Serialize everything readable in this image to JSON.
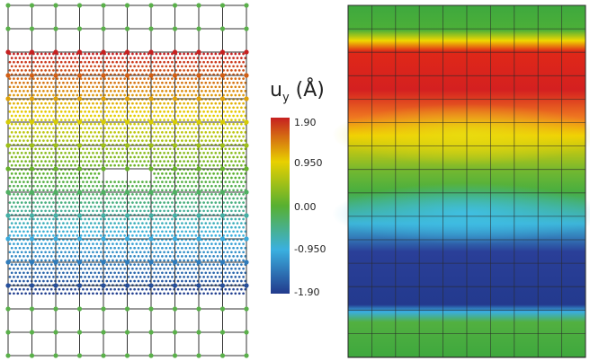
{
  "colorbar": {
    "title_main": "u",
    "title_sub": "y",
    "title_unit": "(Å)",
    "labels": [
      "1.90",
      "0.950",
      "0.00",
      "-0.950",
      "-1.90"
    ],
    "values": [
      1.9,
      0.95,
      0.0,
      -0.95,
      -1.9
    ],
    "min": -1.9,
    "max": 1.9
  },
  "colors": {
    "max": "#c62020",
    "high": "#e8d000",
    "mid": "#58b030",
    "low": "#3ab0e0",
    "min": "#223a8c",
    "node": "#5ab04a",
    "grid": "#333333"
  }
}
